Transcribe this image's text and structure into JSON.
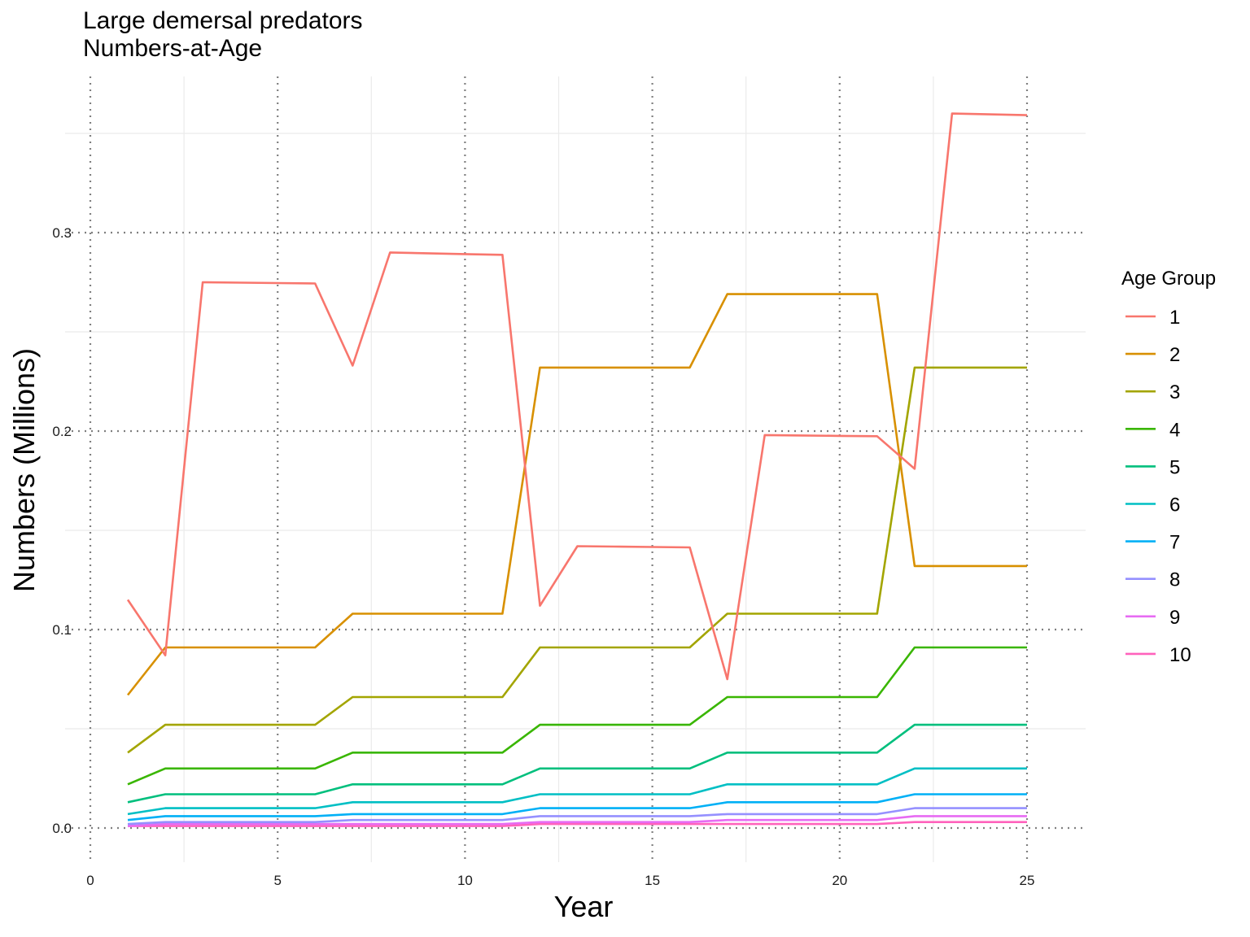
{
  "chart_data": {
    "type": "line",
    "title": "Large demersal predators",
    "subtitle": "Numbers-at-Age",
    "xlabel": "Year",
    "ylabel": "Numbers (Millions)",
    "xlim": [
      0,
      26
    ],
    "ylim": [
      -0.018,
      0.378
    ],
    "x_ticks": [
      0,
      5,
      10,
      15,
      20,
      25
    ],
    "y_ticks": [
      0.0,
      0.1,
      0.2,
      0.3
    ],
    "y_tick_labels": [
      "0.0",
      "0.1",
      "0.2",
      "0.3"
    ],
    "grid": true,
    "legend_title": "Age Group",
    "legend_position": "right",
    "x": [
      1,
      2,
      3,
      4,
      5,
      6,
      7,
      8,
      9,
      10,
      11,
      12,
      13,
      14,
      15,
      16,
      17,
      18,
      19,
      20,
      21,
      22,
      23,
      24,
      25
    ],
    "series": [
      {
        "name": "1",
        "color": "#F8766D",
        "values": [
          0.115,
          0.087,
          0.275,
          0.2748,
          0.2746,
          0.2744,
          0.233,
          0.29,
          0.2896,
          0.2892,
          0.2888,
          0.112,
          0.142,
          0.1418,
          0.1416,
          0.1414,
          0.075,
          0.198,
          0.1978,
          0.1976,
          0.1974,
          0.181,
          0.36,
          0.3596,
          0.3592
        ]
      },
      {
        "name": "2",
        "color": "#D89000",
        "values": [
          0.067,
          0.091,
          0.091,
          0.091,
          0.091,
          0.091,
          0.108,
          0.108,
          0.108,
          0.108,
          0.108,
          0.232,
          0.232,
          0.232,
          0.232,
          0.232,
          0.269,
          0.269,
          0.269,
          0.269,
          0.269,
          0.132,
          0.132,
          0.132,
          0.132
        ]
      },
      {
        "name": "3",
        "color": "#A3A500",
        "values": [
          0.038,
          0.052,
          0.052,
          0.052,
          0.052,
          0.052,
          0.066,
          0.066,
          0.066,
          0.066,
          0.066,
          0.091,
          0.091,
          0.091,
          0.091,
          0.091,
          0.108,
          0.108,
          0.108,
          0.108,
          0.108,
          0.232,
          0.232,
          0.232,
          0.232
        ]
      },
      {
        "name": "4",
        "color": "#39B600",
        "values": [
          0.022,
          0.03,
          0.03,
          0.03,
          0.03,
          0.03,
          0.038,
          0.038,
          0.038,
          0.038,
          0.038,
          0.052,
          0.052,
          0.052,
          0.052,
          0.052,
          0.066,
          0.066,
          0.066,
          0.066,
          0.066,
          0.091,
          0.091,
          0.091,
          0.091
        ]
      },
      {
        "name": "5",
        "color": "#00BF7D",
        "values": [
          0.013,
          0.017,
          0.017,
          0.017,
          0.017,
          0.017,
          0.022,
          0.022,
          0.022,
          0.022,
          0.022,
          0.03,
          0.03,
          0.03,
          0.03,
          0.03,
          0.038,
          0.038,
          0.038,
          0.038,
          0.038,
          0.052,
          0.052,
          0.052,
          0.052
        ]
      },
      {
        "name": "6",
        "color": "#00BFC4",
        "values": [
          0.007,
          0.01,
          0.01,
          0.01,
          0.01,
          0.01,
          0.013,
          0.013,
          0.013,
          0.013,
          0.013,
          0.017,
          0.017,
          0.017,
          0.017,
          0.017,
          0.022,
          0.022,
          0.022,
          0.022,
          0.022,
          0.03,
          0.03,
          0.03,
          0.03
        ]
      },
      {
        "name": "7",
        "color": "#00B0F6",
        "values": [
          0.004,
          0.006,
          0.006,
          0.006,
          0.006,
          0.006,
          0.007,
          0.007,
          0.007,
          0.007,
          0.007,
          0.01,
          0.01,
          0.01,
          0.01,
          0.01,
          0.013,
          0.013,
          0.013,
          0.013,
          0.013,
          0.017,
          0.017,
          0.017,
          0.017
        ]
      },
      {
        "name": "8",
        "color": "#9590FF",
        "values": [
          0.002,
          0.003,
          0.003,
          0.003,
          0.003,
          0.003,
          0.004,
          0.004,
          0.004,
          0.004,
          0.004,
          0.006,
          0.006,
          0.006,
          0.006,
          0.006,
          0.007,
          0.007,
          0.007,
          0.007,
          0.007,
          0.01,
          0.01,
          0.01,
          0.01
        ]
      },
      {
        "name": "9",
        "color": "#E76BF3",
        "values": [
          0.001,
          0.002,
          0.002,
          0.002,
          0.002,
          0.002,
          0.002,
          0.002,
          0.002,
          0.002,
          0.002,
          0.003,
          0.003,
          0.003,
          0.003,
          0.003,
          0.004,
          0.004,
          0.004,
          0.004,
          0.004,
          0.006,
          0.006,
          0.006,
          0.006
        ]
      },
      {
        "name": "10",
        "color": "#FF62BC",
        "values": [
          0.001,
          0.001,
          0.001,
          0.001,
          0.001,
          0.001,
          0.001,
          0.001,
          0.001,
          0.001,
          0.001,
          0.002,
          0.002,
          0.002,
          0.002,
          0.002,
          0.002,
          0.002,
          0.002,
          0.002,
          0.002,
          0.003,
          0.003,
          0.003,
          0.003
        ]
      }
    ]
  }
}
